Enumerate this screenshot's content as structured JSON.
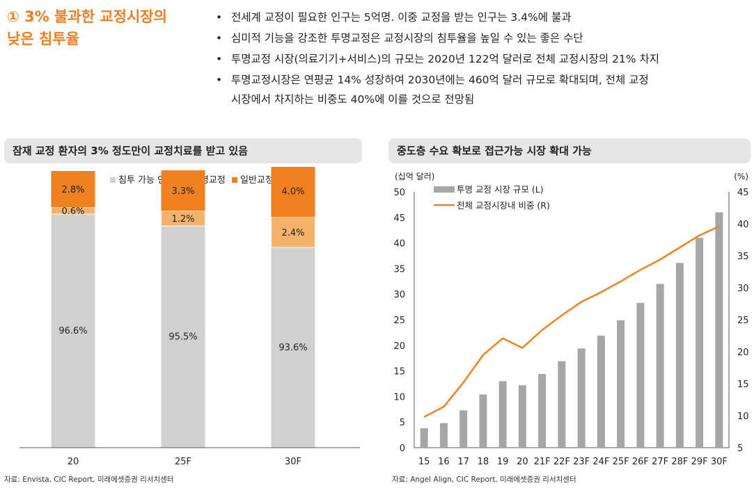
{
  "header": {
    "heading_line1": "① 3% 불과한 교정시장의",
    "heading_line2": "낮은 침투율",
    "bullets": [
      "전세계 교정이 필요한 인구는 5억명. 이중 교정을 받는 인구는 3.4%에 불과",
      "심미적 기능을 강조한 투명교정은 교정시장의 침투율을 높일 수 있는 좋은 수단",
      "투명교정 시장(의료기기+서비스)의 규모는 2020년 122억 달러로 전체 교정시장의 21% 차지",
      "투명교정시장은 연평균 14% 성장하여 2030년에는 460억 달러 규모로 확대되며, 전체 교정"
    ],
    "bullet4_cont": "시장에서 차지하는 비중도 40%에 이를 것으로 전망됨"
  },
  "left_panel": {
    "title": "잠재 교정 환자의 3% 정도만이 교정치료를 받고 있음",
    "source": "자료: Envista, CIC Report, 미래에셋증권 리서치센터"
  },
  "right_panel": {
    "title": "중도층 수요 확보로 접근가능 시장 확대 가능",
    "source": "자료: Angel Align, CIC Report, 미래에셋증권 리서치센터"
  },
  "chart_data": [
    {
      "type": "bar",
      "stacked": true,
      "categories": [
        "20",
        "25F",
        "30F"
      ],
      "series": [
        {
          "name": "침투 가능 인구",
          "values": [
            96.6,
            95.5,
            93.6
          ],
          "labels": [
            "96.6%",
            "95.5%",
            "93.6%"
          ],
          "color": "#d0d0d0"
        },
        {
          "name": "투명교정",
          "values": [
            0.6,
            1.2,
            2.4
          ],
          "labels": [
            "0.6%",
            "1.2%",
            "2.4%"
          ],
          "color": "#f5b26b"
        },
        {
          "name": "일반교정",
          "values": [
            2.8,
            3.3,
            4.0
          ],
          "labels": [
            "2.8%",
            "3.3%",
            "4.0%"
          ],
          "color": "#f08120"
        }
      ],
      "y_axis_break": true,
      "legend": "top-center",
      "grid": false
    },
    {
      "type": "bar+line",
      "categories": [
        "15",
        "16",
        "17",
        "18",
        "19",
        "20",
        "21F",
        "22F",
        "23F",
        "24F",
        "25F",
        "26F",
        "27F",
        "28F",
        "29F",
        "30F"
      ],
      "series": [
        {
          "name": "투명 교정 시장 규모 (L)",
          "type": "bar",
          "axis": "left",
          "color": "#a6a6a6",
          "values": [
            3.8,
            4.8,
            7.3,
            10.4,
            13.0,
            12.2,
            14.4,
            16.9,
            19.4,
            21.9,
            24.9,
            28.3,
            32.0,
            36.1,
            41.0,
            46.0
          ]
        },
        {
          "name": "전체 교정시장내 비중 (R)",
          "type": "line",
          "axis": "right",
          "color": "#f08120",
          "values": [
            9.8,
            11.4,
            15.2,
            19.5,
            22.1,
            20.6,
            23.4,
            25.7,
            27.8,
            29.3,
            31.0,
            32.8,
            34.4,
            36.3,
            38.2,
            39.6
          ]
        }
      ],
      "y_left": {
        "label": "(십억 달러)",
        "min": 0,
        "max": 50,
        "ticks": [
          "0",
          "5",
          "10",
          "15",
          "20",
          "25",
          "30",
          "35",
          "40",
          "45",
          "50"
        ]
      },
      "y_right": {
        "label": "(%)",
        "min": 5,
        "max": 45,
        "ticks": [
          "5",
          "10",
          "15",
          "20",
          "25",
          "30",
          "35",
          "40",
          "45"
        ]
      },
      "legend": "top-left",
      "grid": false
    }
  ]
}
